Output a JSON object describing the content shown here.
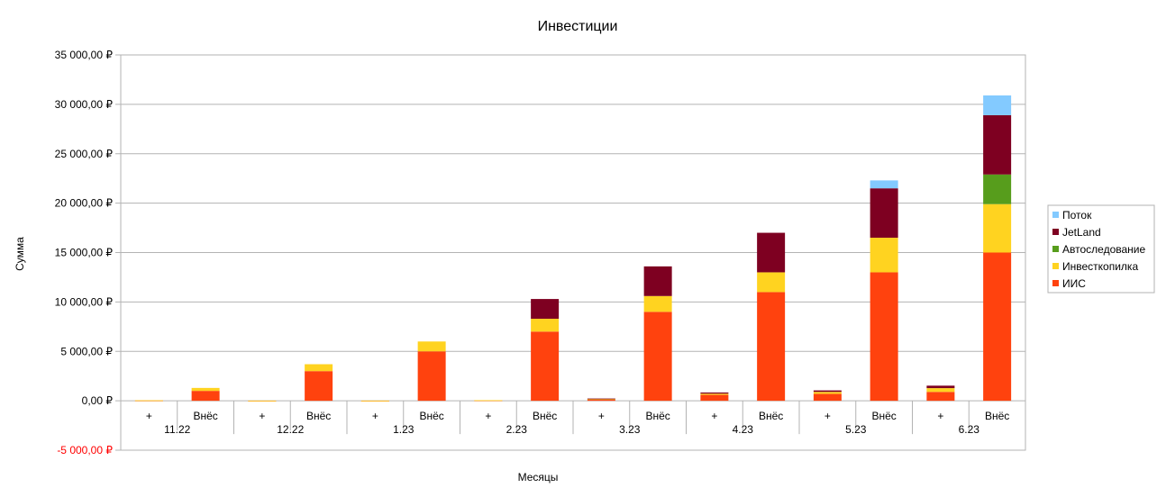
{
  "chart_data": {
    "type": "bar",
    "stacked": true,
    "title": "Инвестиции",
    "xlabel": "Месяцы",
    "ylabel": "Сумма",
    "ylim": [
      -5000,
      35000
    ],
    "y_ticks": [
      {
        "value": 35000,
        "label": "35 000,00 ₽"
      },
      {
        "value": 30000,
        "label": "30 000,00 ₽"
      },
      {
        "value": 25000,
        "label": "25 000,00 ₽"
      },
      {
        "value": 20000,
        "label": "20 000,00 ₽"
      },
      {
        "value": 15000,
        "label": "15 000,00 ₽"
      },
      {
        "value": 10000,
        "label": "10 000,00 ₽"
      },
      {
        "value": 5000,
        "label": "5 000,00 ₽"
      },
      {
        "value": 0,
        "label": "0,00 ₽"
      },
      {
        "value": -5000,
        "label": "-5 000,00 ₽",
        "color": "#ff0000"
      }
    ],
    "grid": true,
    "legend_position": "right",
    "groups": [
      "11.22",
      "12.22",
      "1.23",
      "2.23",
      "3.23",
      "4.23",
      "5.23",
      "6.23"
    ],
    "subcategories": [
      "+",
      "Внёс"
    ],
    "series": [
      {
        "name": "ИИС",
        "color": "#ff420e",
        "values": [
          30,
          1000,
          10,
          3000,
          10,
          5000,
          40,
          7000,
          100,
          9000,
          600,
          11000,
          700,
          13000,
          900,
          15000
        ]
      },
      {
        "name": "Инвесткопилка",
        "color": "#ffd320",
        "values": [
          20,
          300,
          10,
          700,
          10,
          1000,
          20,
          1300,
          80,
          1600,
          120,
          2000,
          200,
          3500,
          380,
          4900
        ]
      },
      {
        "name": "Автоследование",
        "color": "#579d1c",
        "values": [
          0,
          0,
          0,
          0,
          0,
          0,
          0,
          0,
          0,
          0,
          0,
          0,
          0,
          0,
          0,
          3000
        ]
      },
      {
        "name": "JetLand",
        "color": "#7e0021",
        "values": [
          0,
          0,
          0,
          0,
          0,
          0,
          0,
          2000,
          50,
          3000,
          120,
          4000,
          150,
          5000,
          250,
          6000
        ]
      },
      {
        "name": "Поток",
        "color": "#83caff",
        "values": [
          0,
          0,
          0,
          0,
          0,
          0,
          0,
          0,
          0,
          0,
          0,
          0,
          0,
          800,
          0,
          2000
        ]
      }
    ]
  }
}
